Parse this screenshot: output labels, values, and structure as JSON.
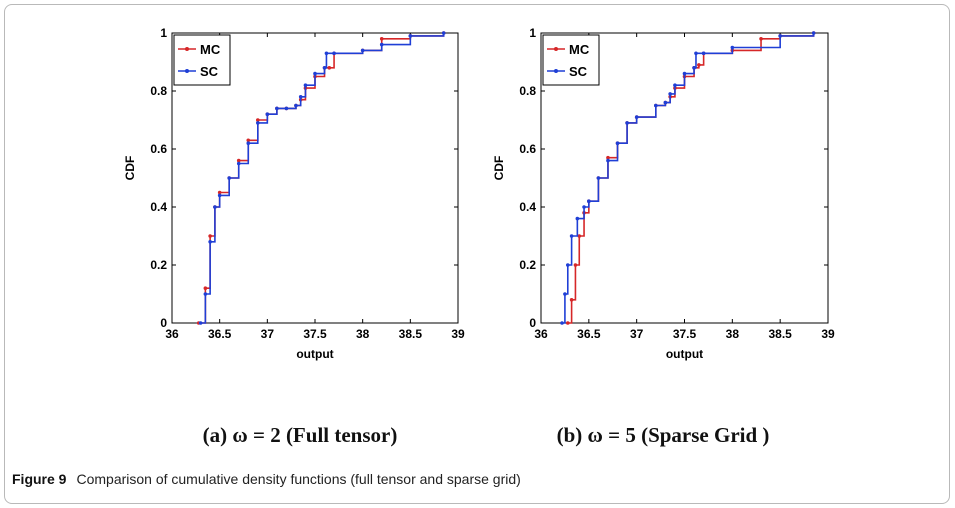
{
  "chart_data": [
    {
      "type": "line",
      "subcaption": "(a) ω = 2 (Full tensor)",
      "xlabel": "output",
      "ylabel": "CDF",
      "xlim": [
        36,
        39
      ],
      "ylim": [
        0,
        1
      ],
      "xticks": [
        "36",
        "36.5",
        "37",
        "37.5",
        "38",
        "38.5",
        "39"
      ],
      "yticks": [
        "0",
        "0.2",
        "0.4",
        "0.6",
        "0.8",
        "1"
      ],
      "legend": {
        "position": "top-left",
        "entries": [
          "MC",
          "SC"
        ]
      },
      "series": [
        {
          "name": "MC",
          "color": "#d62728",
          "x": [
            36.28,
            36.35,
            36.4,
            36.45,
            36.5,
            36.6,
            36.7,
            36.8,
            36.9,
            37.0,
            37.1,
            37.2,
            37.3,
            37.35,
            37.4,
            37.5,
            37.6,
            37.65,
            37.7,
            38.0,
            38.2,
            38.5,
            38.85
          ],
          "y": [
            0.0,
            0.12,
            0.3,
            0.4,
            0.45,
            0.5,
            0.56,
            0.63,
            0.7,
            0.72,
            0.74,
            0.74,
            0.75,
            0.77,
            0.81,
            0.85,
            0.88,
            0.88,
            0.93,
            0.94,
            0.98,
            0.99,
            1.0
          ]
        },
        {
          "name": "SC",
          "color": "#1f3fd6",
          "x": [
            36.3,
            36.35,
            36.4,
            36.45,
            36.5,
            36.6,
            36.7,
            36.8,
            36.9,
            37.0,
            37.1,
            37.2,
            37.3,
            37.35,
            37.4,
            37.5,
            37.6,
            37.62,
            37.7,
            38.0,
            38.2,
            38.5,
            38.85
          ],
          "y": [
            0.0,
            0.1,
            0.28,
            0.4,
            0.44,
            0.5,
            0.55,
            0.62,
            0.69,
            0.72,
            0.74,
            0.74,
            0.75,
            0.78,
            0.82,
            0.86,
            0.88,
            0.93,
            0.93,
            0.94,
            0.96,
            0.99,
            1.0
          ]
        }
      ]
    },
    {
      "type": "line",
      "subcaption": "(b) ω = 5 (Sparse Grid )",
      "xlabel": "output",
      "ylabel": "CDF",
      "xlim": [
        36,
        39
      ],
      "ylim": [
        0,
        1
      ],
      "xticks": [
        "36",
        "36.5",
        "37",
        "37.5",
        "38",
        "38.5",
        "39"
      ],
      "yticks": [
        "0",
        "0.2",
        "0.4",
        "0.6",
        "0.8",
        "1"
      ],
      "legend": {
        "position": "top-left",
        "entries": [
          "MC",
          "SC"
        ]
      },
      "series": [
        {
          "name": "MC",
          "color": "#d62728",
          "x": [
            36.28,
            36.32,
            36.36,
            36.4,
            36.45,
            36.5,
            36.6,
            36.7,
            36.8,
            36.9,
            37.0,
            37.2,
            37.3,
            37.35,
            37.4,
            37.5,
            37.6,
            37.65,
            37.7,
            38.0,
            38.3,
            38.5,
            38.85
          ],
          "y": [
            0.0,
            0.08,
            0.2,
            0.3,
            0.38,
            0.42,
            0.5,
            0.57,
            0.62,
            0.69,
            0.71,
            0.75,
            0.76,
            0.78,
            0.81,
            0.85,
            0.88,
            0.89,
            0.93,
            0.94,
            0.98,
            0.99,
            1.0
          ]
        },
        {
          "name": "SC",
          "color": "#1f3fd6",
          "x": [
            36.22,
            36.25,
            36.28,
            36.32,
            36.38,
            36.45,
            36.5,
            36.6,
            36.7,
            36.8,
            36.9,
            37.0,
            37.2,
            37.3,
            37.35,
            37.4,
            37.5,
            37.6,
            37.62,
            37.7,
            38.0,
            38.5,
            38.85
          ],
          "y": [
            0.0,
            0.1,
            0.2,
            0.3,
            0.36,
            0.4,
            0.42,
            0.5,
            0.56,
            0.62,
            0.69,
            0.71,
            0.75,
            0.76,
            0.79,
            0.82,
            0.86,
            0.88,
            0.93,
            0.93,
            0.95,
            0.99,
            1.0
          ]
        }
      ]
    }
  ],
  "caption": {
    "label": "Figure 9",
    "text": "Comparison of cumulative density functions (full tensor and sparse grid)"
  }
}
